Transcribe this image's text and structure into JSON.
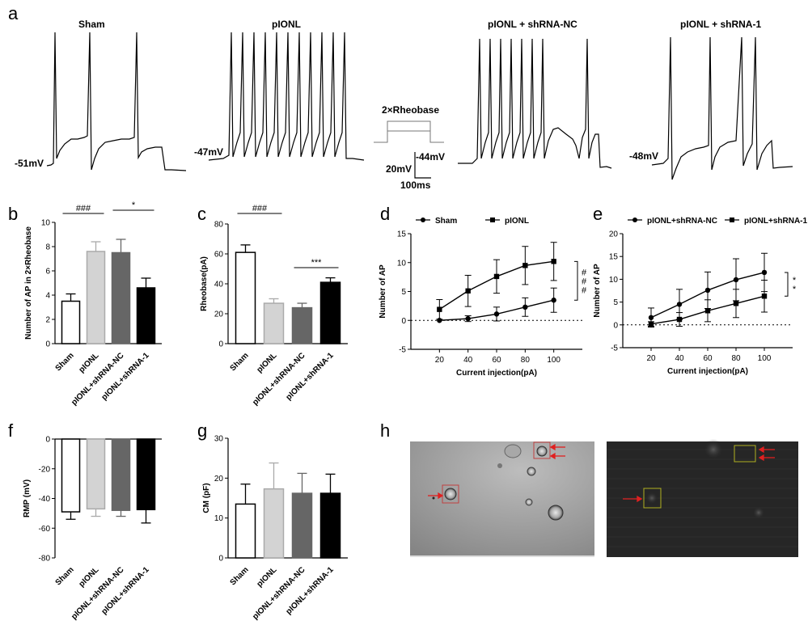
{
  "panel_labels": [
    "a",
    "b",
    "c",
    "d",
    "e",
    "f",
    "g",
    "h"
  ],
  "panel_a": {
    "traces": [
      {
        "title": "Sham",
        "rmp": "-51mV",
        "spikes": 3
      },
      {
        "title": "pIONL",
        "rmp": "-47mV",
        "spikes": 10
      },
      {
        "title": "pIONL + shRNA-NC",
        "rmp": "-44mV",
        "spikes": 10
      },
      {
        "title": "pIONL + shRNA-1",
        "rmp": "-48mV",
        "spikes": 5
      }
    ],
    "protocol_label": "2×Rheobase",
    "scale_v": "20mV",
    "scale_t": "100ms"
  },
  "chart_data": [
    {
      "panel": "b",
      "type": "bar",
      "categories": [
        "Sham",
        "pIONL",
        "pIONL+shRNA-NC",
        "pIONL+shRNA-1"
      ],
      "values": [
        3.5,
        7.6,
        7.5,
        4.6
      ],
      "errors": [
        0.6,
        0.8,
        1.1,
        0.8
      ],
      "ylabel": "Number of AP in 2×Rheobase",
      "ylim": [
        0,
        10
      ],
      "yticks": [
        "0",
        "2",
        "4",
        "6",
        "8",
        "10"
      ],
      "fills": [
        "#ffffff",
        "#d3d3d3",
        "#666666",
        "#000000"
      ],
      "edges": [
        "#000000",
        "#aaaaaa",
        "#666666",
        "#000000"
      ],
      "annotations": [
        {
          "label": "###",
          "from": 0,
          "to": 1
        },
        {
          "label": "*",
          "from": 2,
          "to": 3
        }
      ]
    },
    {
      "panel": "c",
      "type": "bar",
      "categories": [
        "Sham",
        "pIONL",
        "pIONL+shRNA-NC",
        "pIONL+shRNA-1"
      ],
      "values": [
        61,
        27,
        24,
        41
      ],
      "errors": [
        5,
        3,
        3,
        3
      ],
      "ylabel": "Rheobase(pA)",
      "ylim": [
        0,
        80
      ],
      "yticks": [
        "0",
        "20",
        "40",
        "60",
        "80"
      ],
      "fills": [
        "#ffffff",
        "#d3d3d3",
        "#666666",
        "#000000"
      ],
      "edges": [
        "#000000",
        "#aaaaaa",
        "#666666",
        "#000000"
      ],
      "annotations": [
        {
          "label": "###",
          "from": 0,
          "to": 1
        },
        {
          "label": "***",
          "from": 2,
          "to": 3
        }
      ]
    },
    {
      "panel": "d",
      "type": "line",
      "x": [
        20,
        40,
        60,
        80,
        100
      ],
      "series": [
        {
          "name": "Sham",
          "marker": "circle",
          "values": [
            0,
            0.3,
            1.1,
            2.3,
            3.5
          ],
          "errors": [
            0,
            0.5,
            1.2,
            1.6,
            2.1
          ]
        },
        {
          "name": "pIONL",
          "marker": "square",
          "values": [
            1.9,
            5.1,
            7.6,
            9.5,
            10.2
          ],
          "errors": [
            1.7,
            2.7,
            2.9,
            3.3,
            3.3
          ]
        }
      ],
      "xlabel": "Current injection(pA)",
      "ylabel": "Number of AP",
      "xlim": [
        0,
        120
      ],
      "ylim": [
        -5,
        15
      ],
      "xticks": [
        "20",
        "40",
        "60",
        "80",
        "100"
      ],
      "yticks": [
        "-5",
        "0",
        "5",
        "10",
        "15"
      ],
      "annotation": "#\n#\n#"
    },
    {
      "panel": "e",
      "type": "line",
      "x": [
        20,
        40,
        60,
        80,
        100
      ],
      "series": [
        {
          "name": "pIONL+shRNA-NC",
          "marker": "circle",
          "values": [
            1.6,
            4.5,
            7.6,
            9.9,
            11.5
          ],
          "errors": [
            2.1,
            3.3,
            4.0,
            4.6,
            4.2
          ]
        },
        {
          "name": "pIONL+shRNA-1",
          "marker": "square",
          "values": [
            0.2,
            1.2,
            3.1,
            4.7,
            6.3
          ],
          "errors": [
            0.5,
            1.5,
            2.4,
            3.1,
            3.5
          ]
        }
      ],
      "xlabel": "Current injection(pA)",
      "ylabel": "Number of AP",
      "xlim": [
        0,
        120
      ],
      "ylim": [
        -5,
        20
      ],
      "xticks": [
        "20",
        "40",
        "60",
        "80",
        "100"
      ],
      "yticks": [
        "-5",
        "0",
        "5",
        "10",
        "15",
        "20"
      ],
      "annotation": "*\n*"
    },
    {
      "panel": "f",
      "type": "bar",
      "categories": [
        "Sham",
        "pIONL",
        "pIONL+shRNA-NC",
        "pIONL+shRNA-1"
      ],
      "values": [
        -49,
        -47,
        -48,
        -47.5
      ],
      "errors": [
        5,
        5,
        4,
        9
      ],
      "ylabel": "RMP (mV)",
      "ylim": [
        -80,
        0
      ],
      "yticks": [
        "0",
        "-20",
        "-40",
        "-60",
        "-80"
      ],
      "fills": [
        "#ffffff",
        "#d3d3d3",
        "#666666",
        "#000000"
      ],
      "edges": [
        "#000000",
        "#aaaaaa",
        "#666666",
        "#000000"
      ]
    },
    {
      "panel": "g",
      "type": "bar",
      "categories": [
        "Sham",
        "pIONL",
        "pIONL+shRNA-NC",
        "pIONL+shRNA-1"
      ],
      "values": [
        13.5,
        17.3,
        16.2,
        16.2
      ],
      "errors": [
        5,
        6.5,
        5,
        4.8
      ],
      "ylabel": "CM (pF)",
      "ylim": [
        0,
        30
      ],
      "yticks": [
        "0",
        "10",
        "20",
        "30"
      ],
      "fills": [
        "#ffffff",
        "#d3d3d3",
        "#666666",
        "#000000"
      ],
      "edges": [
        "#000000",
        "#aaaaaa",
        "#666666",
        "#000000"
      ]
    }
  ],
  "panel_h": {
    "arrow_color": "#e02020",
    "box_color_bright": "#c04040",
    "box_color_fluor": "#b0b020"
  }
}
